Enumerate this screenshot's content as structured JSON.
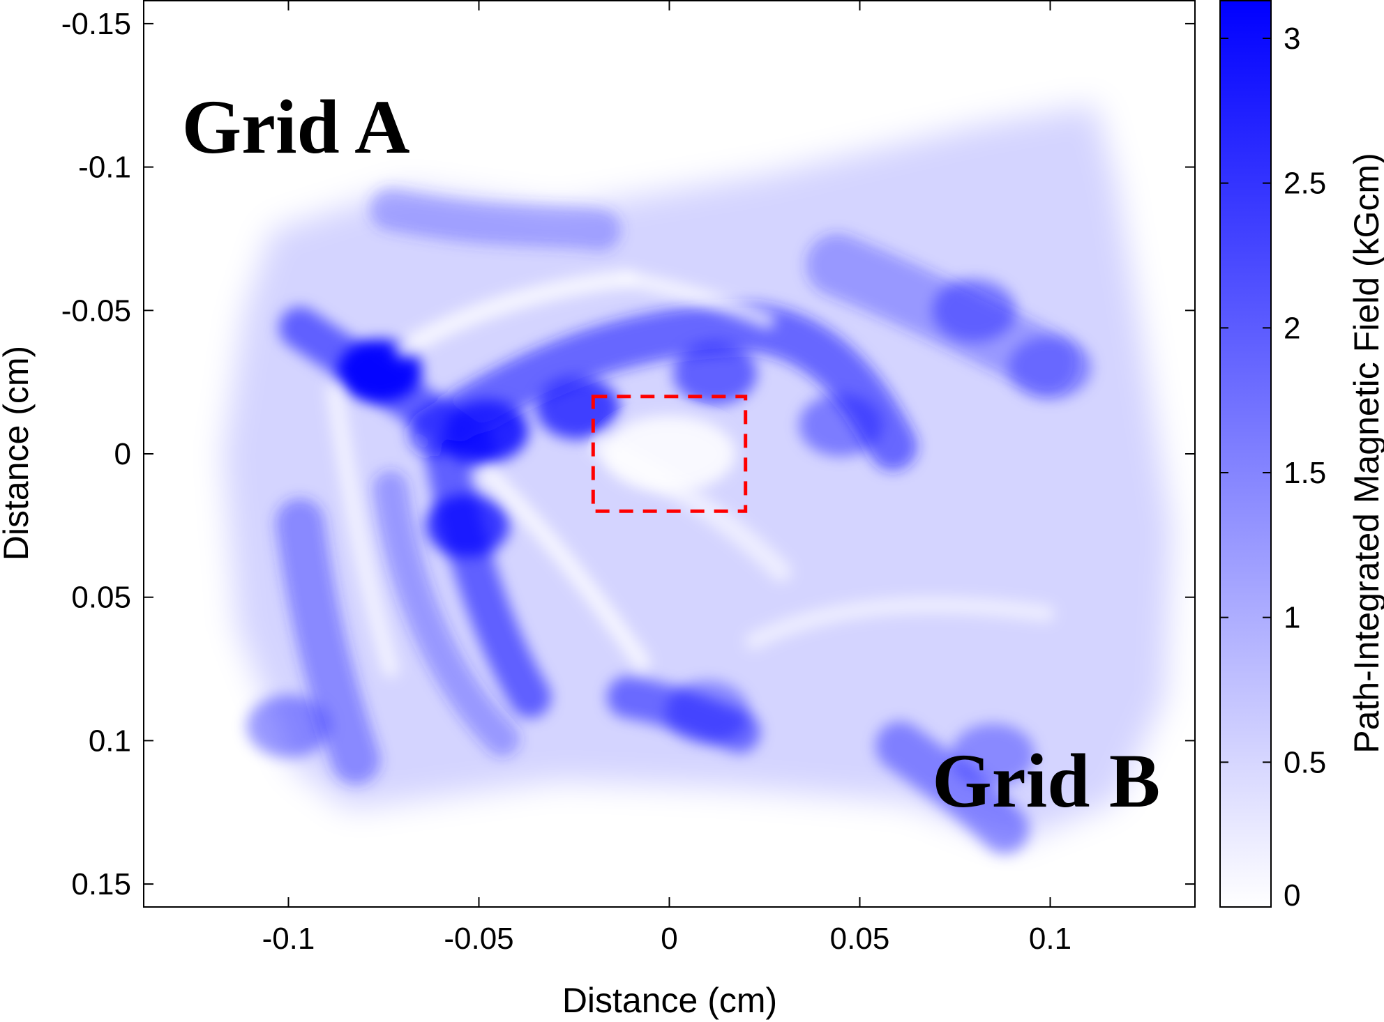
{
  "chart_data": {
    "type": "heatmap",
    "title": "",
    "xlabel": "Distance (cm)",
    "ylabel": "Distance (cm)",
    "colorbar_label": "Path-Integrated Magnetic Field (kGcm)",
    "xlim": [
      -0.138,
      0.138
    ],
    "ylim": [
      -0.158,
      0.158
    ],
    "y_reversed": true,
    "xticks": [
      -0.1,
      -0.05,
      0,
      0.05,
      0.1
    ],
    "xtick_labels": [
      "-0.1",
      "-0.05",
      "0",
      "0.05",
      "0.1"
    ],
    "yticks": [
      -0.15,
      -0.1,
      -0.05,
      0,
      0.05,
      0.1,
      0.15
    ],
    "ytick_labels": [
      "-0.15",
      "-0.1",
      "-0.05",
      "0",
      "0.05",
      "0.1",
      "0.15"
    ],
    "colorbar_range": [
      0,
      3.13
    ],
    "colorbar_ticks": [
      0,
      0.5,
      1,
      1.5,
      2,
      2.5,
      3
    ],
    "colorbar_tick_labels": [
      "0",
      "0.5",
      "1",
      "1.5",
      "2",
      "2.5",
      "3"
    ],
    "colormap": [
      "#ffffff",
      "#0000ff"
    ],
    "grid": false,
    "annotations": [
      {
        "text": "Grid A",
        "x": -0.128,
        "y": -0.105
      },
      {
        "text": "Grid B",
        "x": 0.069,
        "y": 0.123
      }
    ],
    "highlight_box": {
      "x": [
        -0.02,
        0.02
      ],
      "y": [
        -0.02,
        0.02
      ],
      "color": "#ff0000",
      "style": "dashed"
    },
    "field_features": [
      {
        "x": -0.076,
        "y": -0.029,
        "value": 3.0
      },
      {
        "x": -0.048,
        "y": -0.008,
        "value": 2.6
      },
      {
        "x": -0.053,
        "y": 0.025,
        "value": 2.3
      },
      {
        "x": 0.012,
        "y": -0.028,
        "value": 1.7
      },
      {
        "x": -0.024,
        "y": -0.016,
        "value": 2.2
      },
      {
        "x": 0.045,
        "y": -0.01,
        "value": 1.3
      },
      {
        "x": 0.08,
        "y": -0.05,
        "value": 1.3
      },
      {
        "x": 0.1,
        "y": -0.03,
        "value": 1.1
      },
      {
        "x": -0.1,
        "y": 0.095,
        "value": 1.2
      },
      {
        "x": 0.01,
        "y": 0.09,
        "value": 1.1
      },
      {
        "x": 0.085,
        "y": 0.105,
        "value": 1.1
      },
      {
        "x": 0.0,
        "y": 0.0,
        "value": 0.2
      }
    ]
  }
}
